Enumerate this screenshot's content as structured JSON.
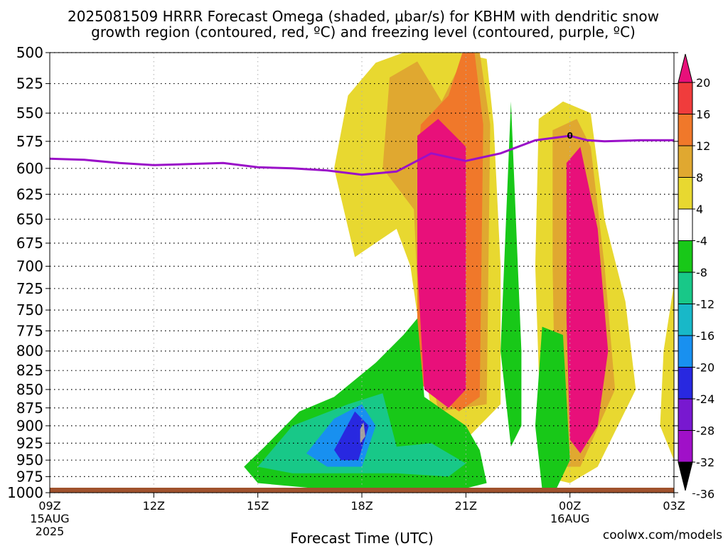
{
  "title_line1": "2025081509 HRRR Forecast Omega (shaded, μbar/s) for KBHM with dendritic snow",
  "title_line2": "growth region (contoured, red, ºC) and freezing level (contoured, purple, ºC)",
  "xlabel": "Forecast Time (UTC)",
  "credit": "coolwx.com/models",
  "colors": {
    "frame": "#000000",
    "grid": "#000000",
    "freezing_line": "#9a10c8",
    "ground": "#a0522d",
    "credit": "#d01818"
  },
  "chart_data": {
    "type": "heatmap",
    "title": "2025081509 HRRR Forecast Omega (shaded, μbar/s) for KBHM with dendritic snow growth region (contoured, red, ºC) and freezing level (contoured, purple, ºC)",
    "xlabel": "Forecast Time (UTC)",
    "ylabel": "",
    "x_range_hours": [
      0,
      18
    ],
    "y_range_hpa": [
      500,
      1000
    ],
    "y_scale": "log-pressure",
    "grid": true,
    "x_ticks": [
      {
        "hour": 0,
        "label": "09Z",
        "sub1": "15AUG",
        "sub2": "2025"
      },
      {
        "hour": 3,
        "label": "12Z",
        "sub1": "",
        "sub2": ""
      },
      {
        "hour": 6,
        "label": "15Z",
        "sub1": "",
        "sub2": ""
      },
      {
        "hour": 9,
        "label": "18Z",
        "sub1": "",
        "sub2": ""
      },
      {
        "hour": 12,
        "label": "21Z",
        "sub1": "",
        "sub2": ""
      },
      {
        "hour": 15,
        "label": "00Z",
        "sub1": "16AUG",
        "sub2": ""
      },
      {
        "hour": 18,
        "label": "03Z",
        "sub1": "",
        "sub2": ""
      }
    ],
    "y_ticks": [
      500,
      525,
      550,
      575,
      600,
      625,
      650,
      675,
      700,
      725,
      750,
      775,
      800,
      825,
      850,
      875,
      900,
      925,
      950,
      975,
      1000
    ],
    "colorbar": {
      "labels": [
        "20",
        "16",
        "12",
        "8",
        "4",
        "-4",
        "-8",
        "-12",
        "-16",
        "-20",
        "-24",
        "-28",
        "-32",
        "-36"
      ],
      "bins": [
        {
          "range": "≥20",
          "color": "#e8107a"
        },
        {
          "range": "16–20",
          "color": "#f03c3c"
        },
        {
          "range": "12–16",
          "color": "#f0782a"
        },
        {
          "range": "8–12",
          "color": "#e0a830"
        },
        {
          "range": "4–8",
          "color": "#e8d830"
        },
        {
          "range": "-4–4",
          "color": "#ffffff"
        },
        {
          "range": "-8–-4",
          "color": "#18c818"
        },
        {
          "range": "-12–-8",
          "color": "#18c888"
        },
        {
          "range": "-16–-12",
          "color": "#18b8c8"
        },
        {
          "range": "-20–-16",
          "color": "#1890f0"
        },
        {
          "range": "-24–-20",
          "color": "#2828e0"
        },
        {
          "range": "-28–-24",
          "color": "#7818d0"
        },
        {
          "range": "-32–-28",
          "color": "#a010c8"
        },
        {
          "range": "≤-36",
          "color": "#a0a0a0"
        }
      ]
    },
    "freezing_level": {
      "label": "0",
      "points_hour_hpa": [
        [
          0,
          591
        ],
        [
          1,
          592
        ],
        [
          2,
          595
        ],
        [
          3,
          597
        ],
        [
          4,
          596
        ],
        [
          5,
          595
        ],
        [
          6,
          599
        ],
        [
          7,
          600
        ],
        [
          8,
          602
        ],
        [
          9,
          606
        ],
        [
          10,
          603
        ],
        [
          11,
          586
        ],
        [
          12,
          593
        ],
        [
          13,
          586
        ],
        [
          14,
          574
        ],
        [
          15,
          570
        ],
        [
          15.5,
          574
        ],
        [
          16,
          575
        ],
        [
          17,
          574
        ],
        [
          18,
          574
        ]
      ]
    },
    "omega_regions": [
      {
        "value": "4–8",
        "points_hour_hpa": [
          [
            8.8,
            690
          ],
          [
            8.2,
            600
          ],
          [
            8.6,
            535
          ],
          [
            9.4,
            508
          ],
          [
            10.2,
            500
          ],
          [
            11.8,
            500
          ],
          [
            12.6,
            505
          ],
          [
            12.8,
            560
          ],
          [
            13.0,
            700
          ],
          [
            13.0,
            870
          ],
          [
            12.0,
            920
          ],
          [
            11.0,
            880
          ],
          [
            10.4,
            700
          ],
          [
            10.0,
            660
          ]
        ]
      },
      {
        "value": "8–12",
        "points_hour_hpa": [
          [
            9.6,
            600
          ],
          [
            9.8,
            520
          ],
          [
            10.6,
            507
          ],
          [
            11.3,
            540
          ],
          [
            12.0,
            500
          ],
          [
            12.4,
            500
          ],
          [
            12.7,
            560
          ],
          [
            12.6,
            870
          ],
          [
            11.2,
            880
          ],
          [
            10.6,
            720
          ],
          [
            10.5,
            640
          ]
        ]
      },
      {
        "value": "12–16",
        "points_hour_hpa": [
          [
            11.5,
            535
          ],
          [
            11.9,
            500
          ],
          [
            12.25,
            500
          ],
          [
            12.5,
            560
          ],
          [
            12.4,
            860
          ],
          [
            11.8,
            880
          ],
          [
            10.6,
            840
          ],
          [
            10.6,
            600
          ],
          [
            10.7,
            560
          ]
        ]
      },
      {
        "value": "≥20",
        "points_hour_hpa": [
          [
            11.2,
            555
          ],
          [
            12.0,
            580
          ],
          [
            12.0,
            700
          ],
          [
            12.0,
            850
          ],
          [
            11.5,
            875
          ],
          [
            10.8,
            850
          ],
          [
            10.6,
            700
          ],
          [
            10.6,
            570
          ]
        ]
      },
      {
        "value": "4–8",
        "points_hour_hpa": [
          [
            14.2,
            975
          ],
          [
            14.0,
            700
          ],
          [
            14.1,
            555
          ],
          [
            14.8,
            540
          ],
          [
            15.6,
            550
          ],
          [
            16.0,
            650
          ],
          [
            16.6,
            740
          ],
          [
            16.9,
            850
          ],
          [
            15.8,
            960
          ],
          [
            15.0,
            985
          ]
        ]
      },
      {
        "value": "8–12",
        "points_hour_hpa": [
          [
            14.6,
            960
          ],
          [
            14.5,
            700
          ],
          [
            14.5,
            565
          ],
          [
            15.2,
            555
          ],
          [
            15.6,
            580
          ],
          [
            16.0,
            700
          ],
          [
            16.3,
            850
          ],
          [
            15.3,
            960
          ]
        ]
      },
      {
        "value": "≥20",
        "points_hour_hpa": [
          [
            15.0,
            920
          ],
          [
            14.9,
            760
          ],
          [
            14.9,
            595
          ],
          [
            15.3,
            580
          ],
          [
            15.8,
            660
          ],
          [
            16.1,
            800
          ],
          [
            15.8,
            900
          ],
          [
            15.3,
            940
          ]
        ]
      },
      {
        "value": "4–8",
        "points_hour_hpa": [
          [
            17.6,
            900
          ],
          [
            17.7,
            800
          ],
          [
            18.0,
            720
          ],
          [
            18.0,
            950
          ]
        ]
      },
      {
        "value": "-4–-8",
        "points_hour_hpa": [
          [
            5.6,
            960
          ],
          [
            6.2,
            930
          ],
          [
            7.2,
            880
          ],
          [
            8.2,
            860
          ],
          [
            9.4,
            815
          ],
          [
            10.2,
            780
          ],
          [
            10.6,
            760
          ],
          [
            10.8,
            860
          ],
          [
            12.0,
            900
          ],
          [
            12.4,
            935
          ],
          [
            12.6,
            985
          ],
          [
            11.5,
            1000
          ],
          [
            8.0,
            995
          ],
          [
            6.0,
            985
          ]
        ]
      },
      {
        "value": "-8–-12",
        "points_hour_hpa": [
          [
            6.0,
            960
          ],
          [
            7.0,
            900
          ],
          [
            8.6,
            870
          ],
          [
            9.6,
            855
          ],
          [
            10.0,
            930
          ],
          [
            11.0,
            925
          ],
          [
            12.0,
            955
          ],
          [
            11.5,
            975
          ],
          [
            10.0,
            970
          ],
          [
            7.0,
            970
          ]
        ]
      },
      {
        "value": "-16–-20",
        "points_hour_hpa": [
          [
            7.4,
            940
          ],
          [
            8.2,
            890
          ],
          [
            9.0,
            870
          ],
          [
            9.4,
            900
          ],
          [
            9.0,
            960
          ],
          [
            8.0,
            960
          ]
        ]
      },
      {
        "value": "-20–-24",
        "points_hour_hpa": [
          [
            8.2,
            935
          ],
          [
            8.8,
            880
          ],
          [
            9.2,
            900
          ],
          [
            8.9,
            950
          ],
          [
            8.4,
            950
          ]
        ]
      },
      {
        "value": "≤-36",
        "points_hour_hpa": [
          [
            8.95,
            905
          ],
          [
            9.05,
            895
          ],
          [
            9.1,
            915
          ],
          [
            8.95,
            925
          ]
        ]
      },
      {
        "value": "-4–-8",
        "points_hour_hpa": [
          [
            13.0,
            800
          ],
          [
            13.3,
            540
          ],
          [
            13.6,
            800
          ],
          [
            13.6,
            900
          ],
          [
            13.3,
            930
          ]
        ]
      },
      {
        "value": "-4–-8",
        "points_hour_hpa": [
          [
            14.2,
            995
          ],
          [
            14.0,
            900
          ],
          [
            14.2,
            770
          ],
          [
            14.8,
            780
          ],
          [
            15.0,
            950
          ],
          [
            14.6,
            995
          ]
        ]
      }
    ]
  }
}
